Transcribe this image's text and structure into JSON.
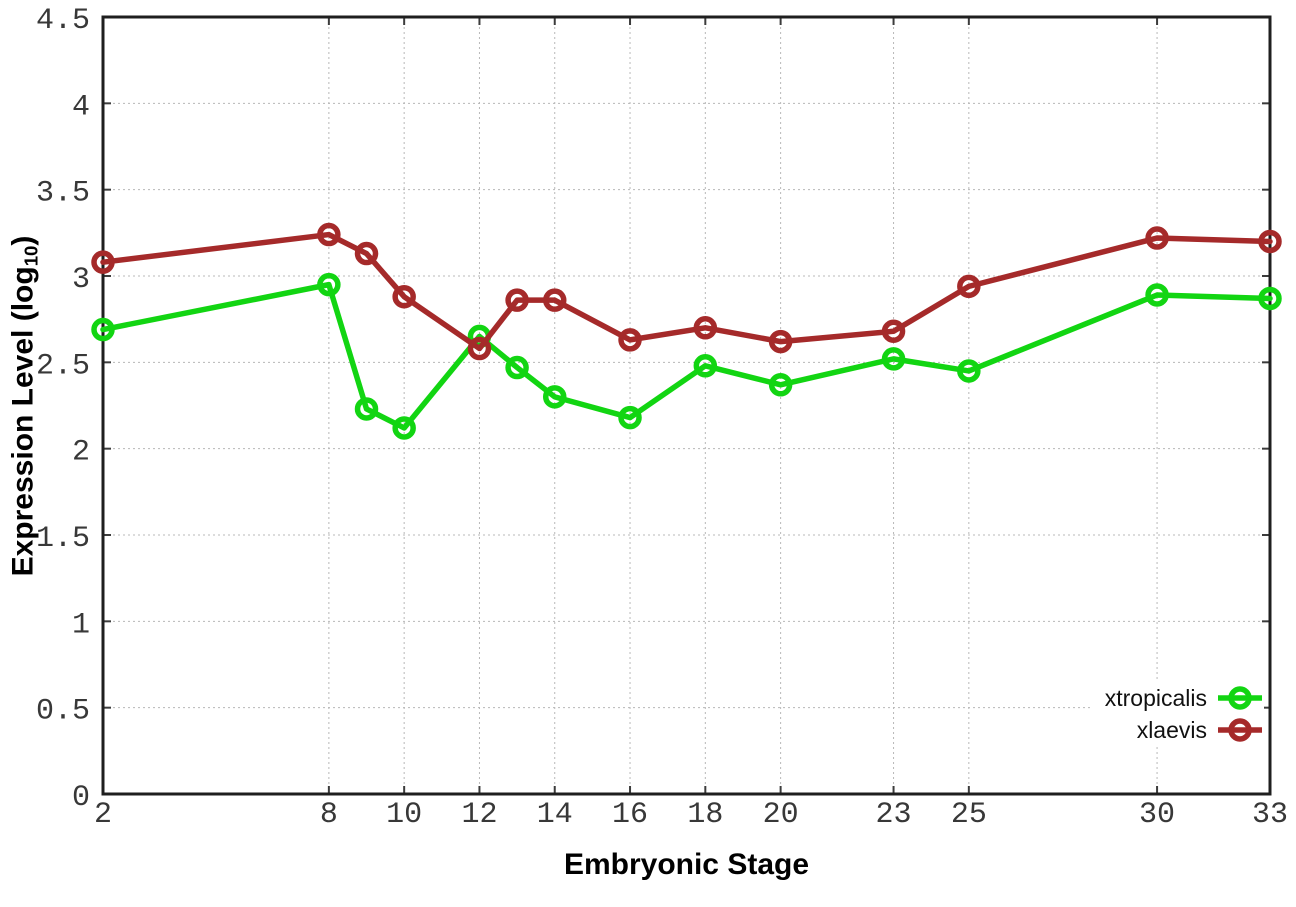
{
  "chart_data": {
    "type": "line",
    "xlabel": "Embryonic Stage",
    "ylabel": "Expression Level (log10)",
    "ylabel_parts": {
      "prefix": "Expression Level (log",
      "sub": "10",
      "suffix": ")"
    },
    "xlim": [
      2,
      33
    ],
    "ylim": [
      0,
      4.5
    ],
    "x_ticks": [
      2,
      8,
      10,
      12,
      14,
      16,
      18,
      20,
      23,
      25,
      30,
      33
    ],
    "y_ticks": [
      0,
      0.5,
      1,
      1.5,
      2,
      2.5,
      3,
      3.5,
      4,
      4.5
    ],
    "grid": true,
    "grid_style": "dotted",
    "legend_position": "inside bottom-right",
    "marker": "open-circle",
    "x": [
      2,
      8,
      9,
      10,
      12,
      13,
      14,
      16,
      18,
      20,
      23,
      25,
      30,
      33
    ],
    "series": [
      {
        "name": "xtropicalis",
        "color": "#12d512",
        "values": [
          2.69,
          2.95,
          2.23,
          2.12,
          2.65,
          2.47,
          2.3,
          2.18,
          2.48,
          2.37,
          2.52,
          2.45,
          2.89,
          2.87
        ]
      },
      {
        "name": "xlaevis",
        "color": "#a52a2a",
        "values": [
          3.08,
          3.24,
          3.13,
          2.88,
          2.58,
          2.86,
          2.86,
          2.63,
          2.7,
          2.62,
          2.68,
          2.94,
          3.22,
          3.2
        ]
      }
    ]
  }
}
